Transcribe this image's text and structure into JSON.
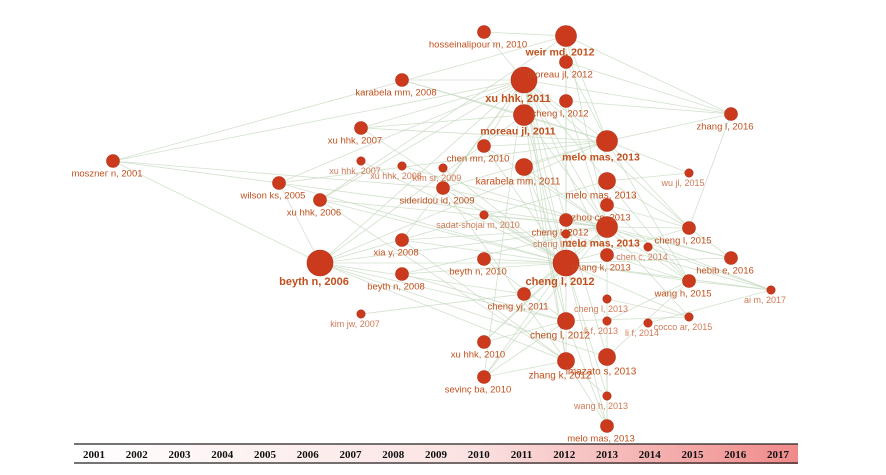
{
  "timeline": {
    "years": [
      "2001",
      "2002",
      "2003",
      "2004",
      "2005",
      "2006",
      "2007",
      "2008",
      "2009",
      "2010",
      "2011",
      "2012",
      "2013",
      "2014",
      "2015",
      "2016",
      "2017"
    ]
  },
  "colors": {
    "node": "#cc3a1e",
    "label": "#c0501e",
    "edge": "#c9dcc4",
    "timeline_start": "#ffffff",
    "timeline_end": "#f08a8a"
  },
  "nodes": [
    {
      "id": "n1",
      "label": "hosseinalipour m, 2010",
      "size": "small"
    },
    {
      "id": "n2",
      "label": "weir md, 2012",
      "size": "large"
    },
    {
      "id": "n3",
      "label": "moreau jl, 2012",
      "size": "small"
    },
    {
      "id": "n4",
      "label": "karabela mm, 2008",
      "size": "small"
    },
    {
      "id": "n5",
      "label": "xu hhk, 2011",
      "size": "xlarge"
    },
    {
      "id": "n6",
      "label": "cheng l, 2012",
      "size": "small"
    },
    {
      "id": "n7",
      "label": "moreau jl, 2011",
      "size": "large"
    },
    {
      "id": "n8",
      "label": "zhang l, 2016",
      "size": "small"
    },
    {
      "id": "n9",
      "label": "xu hhk, 2007",
      "size": "small"
    },
    {
      "id": "n10",
      "label": "melo mas, 2013",
      "size": "large"
    },
    {
      "id": "n11",
      "label": "chen mn, 2010",
      "size": "small"
    },
    {
      "id": "n12",
      "label": "mosznег n, 2001",
      "size": "small"
    },
    {
      "id": "n13",
      "label": "xu hhk, 2007",
      "size": "tiny"
    },
    {
      "id": "n14",
      "label": "xu hhk, 2008",
      "size": "tiny"
    },
    {
      "id": "n15",
      "label": "kim sr, 2009",
      "size": "tiny"
    },
    {
      "id": "n16",
      "label": "karabela mm, 2011",
      "size": "medium"
    },
    {
      "id": "n17",
      "label": "wu jl, 2015",
      "size": "tiny"
    },
    {
      "id": "n18",
      "label": "wilson ks, 2005",
      "size": "small"
    },
    {
      "id": "n19",
      "label": "melo mas, 2013",
      "size": "medium"
    },
    {
      "id": "n20",
      "label": "sideridou id, 2009",
      "size": "small"
    },
    {
      "id": "n21",
      "label": "xu hhk, 2006",
      "size": "small"
    },
    {
      "id": "n22",
      "label": "zhou cc, 2013",
      "size": "small"
    },
    {
      "id": "n23",
      "label": "sadat-shojai m, 2010",
      "size": "tiny"
    },
    {
      "id": "n24",
      "label": "cheng l, 2012",
      "size": "small"
    },
    {
      "id": "n25",
      "label": "melo mas, 2013",
      "size": "large"
    },
    {
      "id": "n26",
      "label": "cheng l, 2015",
      "size": "small"
    },
    {
      "id": "n27",
      "label": "cheng l, 2012",
      "size": "tiny"
    },
    {
      "id": "n28",
      "label": "xia y, 2008",
      "size": "small"
    },
    {
      "id": "n29",
      "label": "zhang k, 2013",
      "size": "small"
    },
    {
      "id": "n30",
      "label": "chen c, 2014",
      "size": "tiny"
    },
    {
      "id": "n31",
      "label": "beyth n, 2006",
      "size": "xlarge"
    },
    {
      "id": "n32",
      "label": "beyth n, 2010",
      "size": "small"
    },
    {
      "id": "n33",
      "label": "cheng l, 2012",
      "size": "xlarge"
    },
    {
      "id": "n34",
      "label": "hebib e, 2016",
      "size": "small"
    },
    {
      "id": "n35",
      "label": "beyth n, 2008",
      "size": "small"
    },
    {
      "id": "n36",
      "label": "wang h, 2015",
      "size": "small"
    },
    {
      "id": "n37",
      "label": "ai m, 2017",
      "size": "tiny"
    },
    {
      "id": "n38",
      "label": "cheng yj, 2011",
      "size": "small"
    },
    {
      "id": "n39",
      "label": "cheng l, 2013",
      "size": "tiny"
    },
    {
      "id": "n40",
      "label": "kim jw, 2007",
      "size": "tiny"
    },
    {
      "id": "n41",
      "label": "cheng l, 2012",
      "size": "medium"
    },
    {
      "id": "n42",
      "label": "li f, 2013",
      "size": "tiny"
    },
    {
      "id": "n43",
      "label": "li f, 2014",
      "size": "tiny"
    },
    {
      "id": "n44",
      "label": "cocco ar, 2015",
      "size": "tiny"
    },
    {
      "id": "n45",
      "label": "xu hhk, 2010",
      "size": "small"
    },
    {
      "id": "n46",
      "label": "zhang k, 2012",
      "size": "medium"
    },
    {
      "id": "n47",
      "label": "imazato s, 2013",
      "size": "medium"
    },
    {
      "id": "n48",
      "label": "sevinç ba, 2010",
      "size": "small"
    },
    {
      "id": "n49",
      "label": "wang h, 2013",
      "size": "tiny"
    },
    {
      "id": "n50",
      "label": "melo mas, 2013",
      "size": "small"
    }
  ],
  "edges": [
    [
      "n12",
      "n5"
    ],
    [
      "n12",
      "n31"
    ],
    [
      "n12",
      "n20"
    ],
    [
      "n12",
      "n2"
    ],
    [
      "n12",
      "n18"
    ],
    [
      "n18",
      "n31"
    ],
    [
      "n18",
      "n5"
    ],
    [
      "n18",
      "n10"
    ],
    [
      "n18",
      "n33"
    ],
    [
      "n18",
      "n25"
    ],
    [
      "n21",
      "n33"
    ],
    [
      "n21",
      "n25"
    ],
    [
      "n21",
      "n46"
    ],
    [
      "n21",
      "n5"
    ],
    [
      "n21",
      "n2"
    ],
    [
      "n31",
      "n33"
    ],
    [
      "n31",
      "n25"
    ],
    [
      "n31",
      "n10"
    ],
    [
      "n31",
      "n5"
    ],
    [
      "n31",
      "n7"
    ],
    [
      "n31",
      "n41"
    ],
    [
      "n31",
      "n46"
    ],
    [
      "n31",
      "n47"
    ],
    [
      "n31",
      "n38"
    ],
    [
      "n31",
      "n19"
    ],
    [
      "n9",
      "n5"
    ],
    [
      "n9",
      "n7"
    ],
    [
      "n9",
      "n10"
    ],
    [
      "n9",
      "n33"
    ],
    [
      "n13",
      "n33"
    ],
    [
      "n14",
      "n25"
    ],
    [
      "n15",
      "n33"
    ],
    [
      "n11",
      "n5"
    ],
    [
      "n11",
      "n10"
    ],
    [
      "n11",
      "n25"
    ],
    [
      "n11",
      "n33"
    ],
    [
      "n20",
      "n25"
    ],
    [
      "n20",
      "n33"
    ],
    [
      "n20",
      "n10"
    ],
    [
      "n20",
      "n5"
    ],
    [
      "n20",
      "n46"
    ],
    [
      "n28",
      "n33"
    ],
    [
      "n28",
      "n25"
    ],
    [
      "n28",
      "n46"
    ],
    [
      "n28",
      "n5"
    ],
    [
      "n35",
      "n33"
    ],
    [
      "n35",
      "n41"
    ],
    [
      "n35",
      "n25"
    ],
    [
      "n32",
      "n33"
    ],
    [
      "n32",
      "n41"
    ],
    [
      "n23",
      "n25"
    ],
    [
      "n23",
      "n33"
    ],
    [
      "n4",
      "n5"
    ],
    [
      "n4",
      "n10"
    ],
    [
      "n4",
      "n7"
    ],
    [
      "n1",
      "n2"
    ],
    [
      "n1",
      "n5"
    ],
    [
      "n2",
      "n8"
    ],
    [
      "n2",
      "n10"
    ],
    [
      "n2",
      "n25"
    ],
    [
      "n2",
      "n33"
    ],
    [
      "n2",
      "n46"
    ],
    [
      "n3",
      "n8"
    ],
    [
      "n3",
      "n10"
    ],
    [
      "n6",
      "n8"
    ],
    [
      "n6",
      "n25"
    ],
    [
      "n5",
      "n8"
    ],
    [
      "n5",
      "n10"
    ],
    [
      "n5",
      "n25"
    ],
    [
      "n5",
      "n33"
    ],
    [
      "n5",
      "n41"
    ],
    [
      "n5",
      "n46"
    ],
    [
      "n5",
      "n47"
    ],
    [
      "n5",
      "n19"
    ],
    [
      "n5",
      "n26"
    ],
    [
      "n5",
      "n29"
    ],
    [
      "n7",
      "n25"
    ],
    [
      "n7",
      "n10"
    ],
    [
      "n7",
      "n33"
    ],
    [
      "n7",
      "n46"
    ],
    [
      "n16",
      "n25"
    ],
    [
      "n16",
      "n33"
    ],
    [
      "n16",
      "n10"
    ],
    [
      "n16",
      "n41"
    ],
    [
      "n10",
      "n8"
    ],
    [
      "n10",
      "n26"
    ],
    [
      "n10",
      "n17"
    ],
    [
      "n10",
      "n36"
    ],
    [
      "n19",
      "n26"
    ],
    [
      "n19",
      "n36"
    ],
    [
      "n19",
      "n17"
    ],
    [
      "n25",
      "n26"
    ],
    [
      "n25",
      "n34"
    ],
    [
      "n25",
      "n36"
    ],
    [
      "n25",
      "n37"
    ],
    [
      "n25",
      "n44"
    ],
    [
      "n25",
      "n49"
    ],
    [
      "n22",
      "n26"
    ],
    [
      "n22",
      "n36"
    ],
    [
      "n24",
      "n34"
    ],
    [
      "n27",
      "n37"
    ],
    [
      "n33",
      "n34"
    ],
    [
      "n33",
      "n36"
    ],
    [
      "n33",
      "n37"
    ],
    [
      "n33",
      "n26"
    ],
    [
      "n33",
      "n44"
    ],
    [
      "n33",
      "n50"
    ],
    [
      "n33",
      "n49"
    ],
    [
      "n29",
      "n36"
    ],
    [
      "n30",
      "n37"
    ],
    [
      "n38",
      "n33"
    ],
    [
      "n38",
      "n25"
    ],
    [
      "n39",
      "n44"
    ],
    [
      "n40",
      "n38"
    ],
    [
      "n41",
      "n44"
    ],
    [
      "n41",
      "n50"
    ],
    [
      "n42",
      "n36"
    ],
    [
      "n43",
      "n37"
    ],
    [
      "n45",
      "n33"
    ],
    [
      "n45",
      "n25"
    ],
    [
      "n45",
      "n41"
    ],
    [
      "n46",
      "n50"
    ],
    [
      "n46",
      "n49"
    ],
    [
      "n47",
      "n50"
    ],
    [
      "n47",
      "n36"
    ],
    [
      "n48",
      "n33"
    ],
    [
      "n48",
      "n25"
    ],
    [
      "n48",
      "n41"
    ],
    [
      "n48",
      "n46"
    ],
    [
      "n48",
      "n5"
    ],
    [
      "n49",
      "n50"
    ],
    [
      "n26",
      "n34"
    ],
    [
      "n8",
      "n26"
    ],
    [
      "n36",
      "n37"
    ]
  ]
}
